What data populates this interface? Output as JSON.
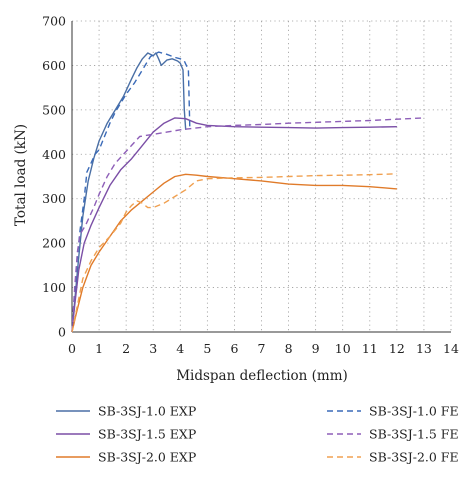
{
  "chart_data": {
    "type": "line",
    "xlabel": "Midspan deflection (mm)",
    "ylabel": "Total load (kN)",
    "xlim": [
      0,
      14
    ],
    "ylim": [
      0,
      700
    ],
    "x_ticks": [
      0,
      1,
      2,
      3,
      4,
      5,
      6,
      7,
      8,
      9,
      10,
      11,
      12,
      13,
      14
    ],
    "y_ticks": [
      0,
      100,
      200,
      300,
      400,
      500,
      600,
      700
    ],
    "grid": "dotted",
    "legend": "bottom, two columns",
    "series": [
      {
        "name": "SB-3SJ-1.0 EXP",
        "color": "#4a6fa5",
        "dash": "solid",
        "points": [
          [
            0,
            0
          ],
          [
            0.1,
            70
          ],
          [
            0.25,
            170
          ],
          [
            0.4,
            260
          ],
          [
            0.6,
            340
          ],
          [
            0.8,
            390
          ],
          [
            1.0,
            430
          ],
          [
            1.3,
            470
          ],
          [
            1.6,
            500
          ],
          [
            1.9,
            530
          ],
          [
            2.2,
            570
          ],
          [
            2.4,
            595
          ],
          [
            2.6,
            615
          ],
          [
            2.8,
            628
          ],
          [
            3.0,
            622
          ],
          [
            3.1,
            628
          ],
          [
            3.2,
            615
          ],
          [
            3.3,
            600
          ],
          [
            3.5,
            612
          ],
          [
            3.7,
            615
          ],
          [
            3.9,
            610
          ],
          [
            4.0,
            605
          ],
          [
            4.1,
            590
          ],
          [
            4.15,
            500
          ],
          [
            4.2,
            455
          ]
        ]
      },
      {
        "name": "SB-3SJ-1.5 EXP",
        "color": "#7b4fa6",
        "dash": "solid",
        "points": [
          [
            0,
            0
          ],
          [
            0.1,
            60
          ],
          [
            0.25,
            140
          ],
          [
            0.45,
            200
          ],
          [
            0.7,
            240
          ],
          [
            1.0,
            280
          ],
          [
            1.4,
            330
          ],
          [
            1.8,
            365
          ],
          [
            2.2,
            390
          ],
          [
            2.6,
            420
          ],
          [
            3.0,
            450
          ],
          [
            3.4,
            470
          ],
          [
            3.8,
            482
          ],
          [
            4.2,
            480
          ],
          [
            4.6,
            470
          ],
          [
            5.0,
            465
          ],
          [
            6.0,
            462
          ],
          [
            7.0,
            461
          ],
          [
            8.0,
            460
          ],
          [
            9.0,
            459
          ],
          [
            10.0,
            460
          ],
          [
            11.0,
            461
          ],
          [
            12.0,
            462
          ]
        ]
      },
      {
        "name": "SB-3SJ-2.0 EXP",
        "color": "#e07b2a",
        "dash": "solid",
        "points": [
          [
            0,
            0
          ],
          [
            0.15,
            40
          ],
          [
            0.4,
            100
          ],
          [
            0.7,
            150
          ],
          [
            1.0,
            180
          ],
          [
            1.4,
            215
          ],
          [
            1.8,
            250
          ],
          [
            2.2,
            275
          ],
          [
            2.6,
            295
          ],
          [
            3.0,
            315
          ],
          [
            3.4,
            335
          ],
          [
            3.8,
            350
          ],
          [
            4.2,
            355
          ],
          [
            4.6,
            353
          ],
          [
            5.0,
            350
          ],
          [
            6.0,
            345
          ],
          [
            7.0,
            340
          ],
          [
            8.0,
            333
          ],
          [
            9.0,
            330
          ],
          [
            10.0,
            330
          ],
          [
            11.0,
            327
          ],
          [
            12.0,
            322
          ]
        ]
      },
      {
        "name": "SB-3SJ-1.0 FE",
        "color": "#3a6ab8",
        "dash": "dashed",
        "points": [
          [
            0,
            0
          ],
          [
            0.1,
            90
          ],
          [
            0.2,
            170
          ],
          [
            0.3,
            230
          ],
          [
            0.45,
            300
          ],
          [
            0.55,
            360
          ],
          [
            0.7,
            380
          ],
          [
            0.85,
            400
          ],
          [
            1.0,
            410
          ],
          [
            1.2,
            440
          ],
          [
            1.4,
            470
          ],
          [
            1.6,
            495
          ],
          [
            1.8,
            515
          ],
          [
            2.0,
            535
          ],
          [
            2.3,
            560
          ],
          [
            2.6,
            590
          ],
          [
            2.9,
            620
          ],
          [
            3.2,
            630
          ],
          [
            3.5,
            625
          ],
          [
            3.8,
            618
          ],
          [
            4.0,
            615
          ],
          [
            4.15,
            610
          ],
          [
            4.3,
            590
          ],
          [
            4.35,
            460
          ]
        ]
      },
      {
        "name": "SB-3SJ-1.5 FE",
        "color": "#8e5fb8",
        "dash": "dashed",
        "points": [
          [
            0,
            0
          ],
          [
            0.1,
            100
          ],
          [
            0.2,
            180
          ],
          [
            0.3,
            220
          ],
          [
            0.5,
            240
          ],
          [
            0.8,
            280
          ],
          [
            1.0,
            310
          ],
          [
            1.3,
            350
          ],
          [
            1.6,
            380
          ],
          [
            1.9,
            400
          ],
          [
            2.2,
            420
          ],
          [
            2.5,
            440
          ],
          [
            3.0,
            445
          ],
          [
            3.5,
            450
          ],
          [
            4.0,
            455
          ],
          [
            5.0,
            462
          ],
          [
            6.0,
            465
          ],
          [
            7.0,
            467
          ],
          [
            8.0,
            470
          ],
          [
            9.0,
            472
          ],
          [
            10.0,
            474
          ],
          [
            11.0,
            476
          ],
          [
            12.0,
            479
          ],
          [
            13.0,
            482
          ]
        ]
      },
      {
        "name": "SB-3SJ-2.0 FE",
        "color": "#f0a050",
        "dash": "dashed",
        "points": [
          [
            0,
            0
          ],
          [
            0.2,
            60
          ],
          [
            0.4,
            120
          ],
          [
            0.7,
            160
          ],
          [
            1.0,
            190
          ],
          [
            1.4,
            215
          ],
          [
            1.8,
            245
          ],
          [
            2.0,
            270
          ],
          [
            2.2,
            285
          ],
          [
            2.4,
            295
          ],
          [
            2.6,
            290
          ],
          [
            2.8,
            280
          ],
          [
            3.0,
            280
          ],
          [
            3.4,
            290
          ],
          [
            3.8,
            305
          ],
          [
            4.2,
            320
          ],
          [
            4.6,
            340
          ],
          [
            5.0,
            345
          ],
          [
            6.0,
            347
          ],
          [
            7.0,
            348
          ],
          [
            8.0,
            350
          ],
          [
            9.0,
            352
          ],
          [
            10.0,
            353
          ],
          [
            11.0,
            354
          ],
          [
            12.0,
            356
          ]
        ]
      }
    ]
  }
}
